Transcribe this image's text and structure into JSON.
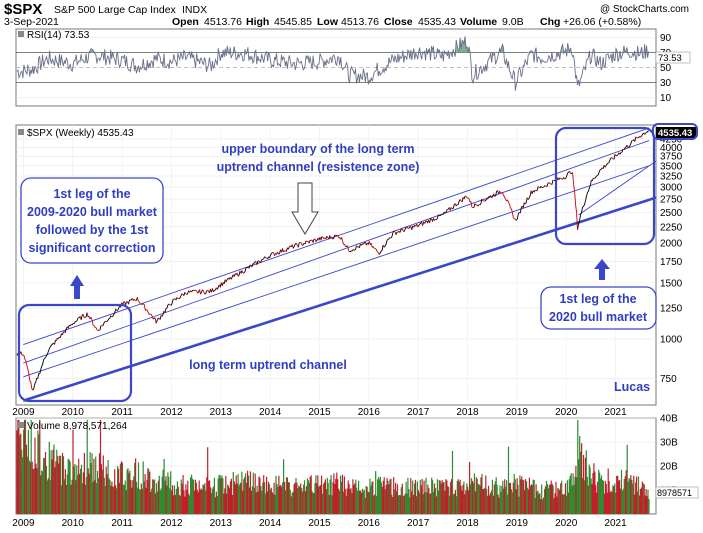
{
  "header": {
    "symbol": "$SPX",
    "name": "S&P 500 Large Cap Index",
    "exchange": "INDX",
    "watermark": "@ StockCharts.com",
    "date": "3-Sep-2021",
    "quote": {
      "open_label": "Open",
      "open": "4513.76",
      "high_label": "High",
      "high": "4545.85",
      "low_label": "Low",
      "low": "4513.76",
      "close_label": "Close",
      "close": "4535.43",
      "volume_label": "Volume",
      "volume": "9.0B",
      "chg_label": "Chg",
      "chg": "+26.06 (+0.58%)"
    }
  },
  "rsi_panel": {
    "label": "RSI(14) 73.53",
    "value_tag": "73.53",
    "ticks": [
      {
        "v": 90,
        "t": "90"
      },
      {
        "v": 70,
        "t": "70"
      },
      {
        "v": 50,
        "t": "50"
      },
      {
        "v": 30,
        "t": "30"
      },
      {
        "v": 10,
        "t": "10"
      }
    ],
    "overbought": 70,
    "oversold": 30,
    "ylim": [
      0,
      100
    ],
    "colors": {
      "line": "#6a6f8a",
      "fill": "#5f9e7a"
    }
  },
  "price_panel": {
    "label": "$SPX (Weekly) 4535.43",
    "value_tag": "4535.43",
    "ticks": [
      {
        "v": 4250,
        "t": "4250"
      },
      {
        "v": 4000,
        "t": "4000"
      },
      {
        "v": 3750,
        "t": "3750"
      },
      {
        "v": 3500,
        "t": "3500"
      },
      {
        "v": 3250,
        "t": "3250"
      },
      {
        "v": 3000,
        "t": "3000"
      },
      {
        "v": 2750,
        "t": "2750"
      },
      {
        "v": 2500,
        "t": "2500"
      },
      {
        "v": 2250,
        "t": "2250"
      },
      {
        "v": 2000,
        "t": "2000"
      },
      {
        "v": 1750,
        "t": "1750"
      },
      {
        "v": 1500,
        "t": "1500"
      },
      {
        "v": 1250,
        "t": "1250"
      },
      {
        "v": 1000,
        "t": "1000"
      },
      {
        "v": 750,
        "t": "750"
      }
    ],
    "log_scale": true,
    "ylim": [
      620,
      4700
    ],
    "colors": {
      "up": "#000000",
      "down": "#cc0000",
      "channel": "#3a47c9",
      "box": "#3a47c9"
    }
  },
  "volume_panel": {
    "label": "Volume 8,978,571,264",
    "value_tag": "8978571",
    "ticks": [
      {
        "v": 40,
        "t": "40B"
      },
      {
        "v": 30,
        "t": "30B"
      },
      {
        "v": 20,
        "t": "20B"
      },
      {
        "v": 10,
        "t": "10B"
      }
    ],
    "ylim": [
      0,
      40
    ],
    "colors": {
      "up": "#2e8b2e",
      "down": "#c21f2a"
    }
  },
  "x_axis": {
    "labels": [
      "2009",
      "2010",
      "2011",
      "2012",
      "2013",
      "2014",
      "2015",
      "2016",
      "2017",
      "2018",
      "2019",
      "2020",
      "2021"
    ],
    "xlim": [
      2008.85,
      2021.82
    ]
  },
  "annotations": {
    "upper_boundary": [
      "upper boundary of the long term",
      "uptrend channel (resistence zone)"
    ],
    "first_leg_2009": [
      "1st leg of the",
      "2009-2020 bull market",
      "followed by the 1st",
      "significant correction"
    ],
    "first_leg_2020": [
      "1st leg of the",
      "2020 bull market"
    ],
    "long_term_channel": "long term uptrend channel",
    "author": "Lucas"
  },
  "chart_data": {
    "type": "line",
    "title": "$SPX S&P 500 Large Cap Index INDX",
    "x": [
      2009.0,
      2009.19,
      2009.5,
      2010.0,
      2010.3,
      2010.5,
      2011.0,
      2011.3,
      2011.7,
      2012.0,
      2012.3,
      2012.8,
      2013.0,
      2013.5,
      2014.0,
      2014.5,
      2015.0,
      2015.4,
      2015.6,
      2016.0,
      2016.2,
      2016.5,
      2017.0,
      2017.5,
      2018.0,
      2018.1,
      2018.7,
      2018.97,
      2019.3,
      2019.5,
      2020.0,
      2020.12,
      2020.23,
      2020.5,
      2020.7,
      2021.0,
      2021.3,
      2021.5,
      2021.68
    ],
    "series": [
      {
        "values": [
          900,
          680,
          920,
          1120,
          1200,
          1060,
          1280,
          1340,
          1130,
          1300,
          1400,
          1410,
          1480,
          1650,
          1830,
          1960,
          2060,
          2110,
          1900,
          2000,
          1860,
          2150,
          2270,
          2450,
          2820,
          2600,
          2930,
          2350,
          2900,
          3000,
          3250,
          3380,
          2240,
          3100,
          3400,
          3750,
          4100,
          4350,
          4535
        ]
      },
      {
        "values": [
          45,
          48,
          62,
          55,
          64,
          66,
          60,
          52,
          62,
          58,
          63,
          52,
          70,
          69,
          60,
          55,
          58,
          65,
          40,
          38,
          48,
          60,
          72,
          65,
          86,
          40,
          72,
          30,
          68,
          63,
          72,
          78,
          22,
          67,
          55,
          68,
          72,
          68,
          73.53
        ]
      },
      {
        "values": [
          33,
          30,
          22,
          18,
          20,
          19,
          16,
          17,
          14,
          13,
          12,
          11,
          12,
          13,
          12,
          11,
          12,
          13,
          11,
          11,
          12,
          11,
          11,
          11,
          12,
          13,
          11,
          12,
          11,
          10,
          11,
          13,
          25,
          16,
          14,
          14,
          13,
          12,
          9
        ]
      }
    ],
    "ylim": [
      620,
      4700
    ]
  }
}
